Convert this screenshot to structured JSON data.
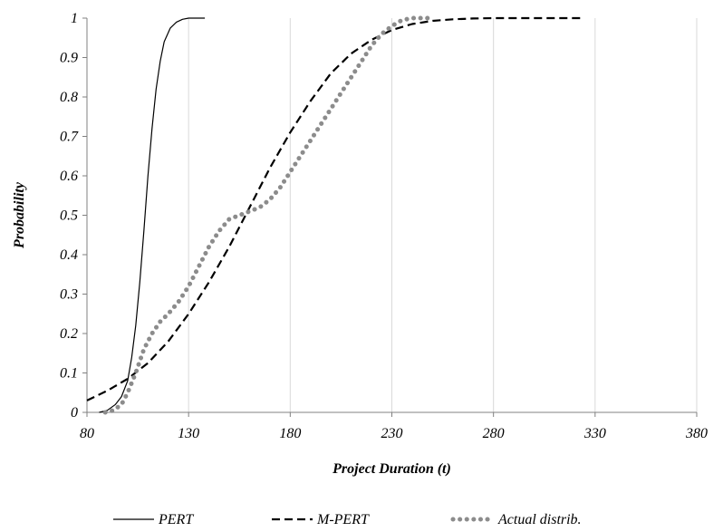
{
  "chart_data": {
    "type": "line",
    "title": "",
    "xlabel": "Project Duration (t)",
    "ylabel": "Probability",
    "xlim": [
      80,
      380
    ],
    "ylim": [
      0,
      1
    ],
    "x_ticks": [
      80,
      130,
      180,
      230,
      280,
      330,
      380
    ],
    "x_tick_labels": [
      "80",
      "130",
      "180",
      "230",
      "280",
      "330",
      "380"
    ],
    "y_ticks": [
      0,
      0.1,
      0.2,
      0.3,
      0.4,
      0.5,
      0.6,
      0.7,
      0.8,
      0.9,
      1
    ],
    "y_tick_labels": [
      "0",
      "0.1",
      "0.2",
      "0.3",
      "0.4",
      "0.5",
      "0.6",
      "0.7",
      "0.8",
      "0.9",
      "1"
    ],
    "grid": "vertical",
    "legend_position": "bottom",
    "series": [
      {
        "name": "PERT",
        "style": "solid",
        "color": "#000000",
        "x": [
          86,
          90,
          94,
          97,
          100,
          102,
          104,
          106,
          108,
          110,
          112,
          114,
          116,
          118,
          121,
          124,
          127,
          130,
          134,
          138
        ],
        "y": [
          0,
          0.005,
          0.02,
          0.04,
          0.08,
          0.14,
          0.22,
          0.33,
          0.46,
          0.6,
          0.72,
          0.82,
          0.89,
          0.94,
          0.975,
          0.99,
          0.997,
          1,
          1,
          1
        ]
      },
      {
        "name": "M-PERT",
        "style": "dashed",
        "color": "#000000",
        "x": [
          80,
          90,
          100,
          110,
          120,
          130,
          140,
          150,
          160,
          170,
          180,
          190,
          200,
          210,
          220,
          230,
          240,
          250,
          260,
          270,
          280,
          300,
          323
        ],
        "y": [
          0.03,
          0.055,
          0.085,
          0.125,
          0.18,
          0.25,
          0.33,
          0.42,
          0.52,
          0.62,
          0.71,
          0.79,
          0.86,
          0.91,
          0.945,
          0.97,
          0.985,
          0.993,
          0.997,
          0.999,
          1,
          1,
          1
        ]
      },
      {
        "name": "Actual distrib.",
        "style": "dotted",
        "color": "#8c8c8c",
        "x": [
          89,
          93,
          97,
          100,
          104,
          108,
          112,
          116,
          120,
          125,
          130,
          135,
          140,
          145,
          150,
          155,
          160,
          165,
          170,
          175,
          180,
          185,
          190,
          195,
          200,
          205,
          210,
          215,
          220,
          225,
          230,
          235,
          240,
          245,
          250
        ],
        "y": [
          0,
          0.005,
          0.02,
          0.05,
          0.1,
          0.16,
          0.2,
          0.23,
          0.25,
          0.28,
          0.32,
          0.37,
          0.42,
          0.46,
          0.49,
          0.5,
          0.51,
          0.52,
          0.54,
          0.57,
          0.61,
          0.65,
          0.69,
          0.73,
          0.77,
          0.81,
          0.85,
          0.89,
          0.93,
          0.96,
          0.98,
          0.995,
          1,
          1,
          1
        ]
      }
    ]
  }
}
